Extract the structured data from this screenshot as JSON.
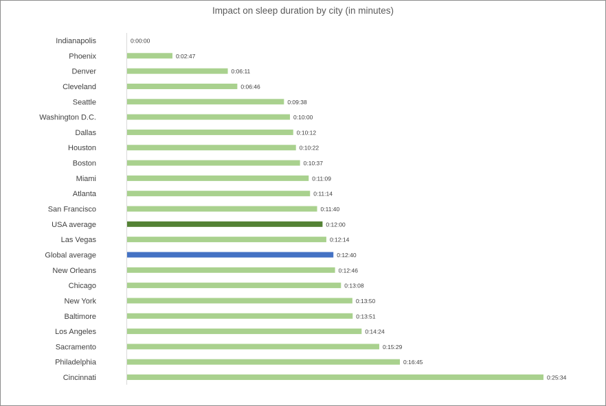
{
  "chart_data": {
    "type": "bar",
    "orientation": "horizontal",
    "title": "Impact on sleep duration by city (in minutes)",
    "xlabel": "",
    "ylabel": "",
    "unit": "minutes",
    "grid": false,
    "legend": "none",
    "categories": [
      "Indianapolis",
      "Phoenix",
      "Denver",
      "Cleveland",
      "Seattle",
      "Washington D.C.",
      "Dallas",
      "Houston",
      "Boston",
      "Miami",
      "Atlanta",
      "San Francisco",
      "USA average",
      "Las Vegas",
      "Global average",
      "New Orleans",
      "Chicago",
      "New York",
      "Baltimore",
      "Los Angeles",
      "Sacramento",
      "Philadelphia",
      "Cincinnati"
    ],
    "values": [
      0,
      2.783,
      6.183,
      6.767,
      9.633,
      10.0,
      10.2,
      10.367,
      10.617,
      11.15,
      11.233,
      11.667,
      12.0,
      12.233,
      12.667,
      12.767,
      13.133,
      13.833,
      13.85,
      14.4,
      15.483,
      16.75,
      25.567
    ],
    "data_labels": [
      "0:00:00",
      "0:02:47",
      "0:06:11",
      "0:06:46",
      "0:09:38",
      "0:10:00",
      "0:10:12",
      "0:10:22",
      "0:10:37",
      "0:11:09",
      "0:11:14",
      "0:11:40",
      "0:12:00",
      "0:12:14",
      "0:12:40",
      "0:12:46",
      "0:13:08",
      "0:13:50",
      "0:13:51",
      "0:14:24",
      "0:15:29",
      "0:16:45",
      "0:25:34"
    ],
    "xlim": [
      0,
      25.567
    ],
    "colors": {
      "default": "#a9d18e",
      "USA average": "#548235",
      "Global average": "#4472c4",
      "text": "#404040",
      "axis": "#d9d9d9"
    }
  }
}
